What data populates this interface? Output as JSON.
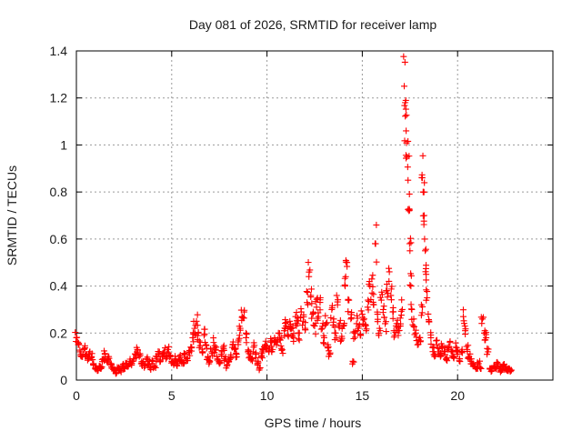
{
  "chart_data": {
    "type": "scatter",
    "title": "Day 081 of 2026, SRMTID for receiver lamp",
    "xlabel": "GPS time / hours",
    "ylabel": "SRMTID / TECUs",
    "xlim": [
      0,
      25
    ],
    "ylim": [
      0,
      1.4
    ],
    "xticks": [
      0,
      5,
      10,
      15,
      20
    ],
    "xtick_labels": [
      "0",
      "5",
      "10",
      "15",
      "20"
    ],
    "yticks": [
      0,
      0.2,
      0.4,
      0.6,
      0.8,
      1.0,
      1.2,
      1.4
    ],
    "ytick_labels": [
      "0",
      "0.2",
      "0.4",
      "0.6",
      "0.8",
      "1",
      "1.2",
      "1.4"
    ],
    "grid": true,
    "marker": "plus",
    "color": "#ff0000",
    "series": [
      {
        "name": "SRMTID",
        "points": [
          [
            0.0,
            0.18
          ],
          [
            0.1,
            0.15
          ],
          [
            0.2,
            0.12
          ],
          [
            0.3,
            0.1
          ],
          [
            0.4,
            0.13
          ],
          [
            0.5,
            0.11
          ],
          [
            0.6,
            0.09
          ],
          [
            0.7,
            0.12
          ],
          [
            0.8,
            0.1
          ],
          [
            0.9,
            0.07
          ],
          [
            1.0,
            0.05
          ],
          [
            1.1,
            0.04
          ],
          [
            1.2,
            0.06
          ],
          [
            1.3,
            0.05
          ],
          [
            1.4,
            0.09
          ],
          [
            1.5,
            0.11
          ],
          [
            1.6,
            0.08
          ],
          [
            1.7,
            0.1
          ],
          [
            1.8,
            0.07
          ],
          [
            1.9,
            0.05
          ],
          [
            2.0,
            0.04
          ],
          [
            2.1,
            0.03
          ],
          [
            2.2,
            0.05
          ],
          [
            2.3,
            0.04
          ],
          [
            2.4,
            0.06
          ],
          [
            2.5,
            0.05
          ],
          [
            2.6,
            0.07
          ],
          [
            2.7,
            0.06
          ],
          [
            2.8,
            0.08
          ],
          [
            2.9,
            0.07
          ],
          [
            3.0,
            0.09
          ],
          [
            3.1,
            0.11
          ],
          [
            3.2,
            0.13
          ],
          [
            3.3,
            0.1
          ],
          [
            3.4,
            0.07
          ],
          [
            3.5,
            0.08
          ],
          [
            3.6,
            0.06
          ],
          [
            3.7,
            0.09
          ],
          [
            3.8,
            0.07
          ],
          [
            3.9,
            0.05
          ],
          [
            4.0,
            0.08
          ],
          [
            4.1,
            0.06
          ],
          [
            4.2,
            0.09
          ],
          [
            4.3,
            0.11
          ],
          [
            4.4,
            0.08
          ],
          [
            4.5,
            0.1
          ],
          [
            4.6,
            0.12
          ],
          [
            4.7,
            0.09
          ],
          [
            4.8,
            0.13
          ],
          [
            4.9,
            0.1
          ],
          [
            5.0,
            0.08
          ],
          [
            5.1,
            0.07
          ],
          [
            5.2,
            0.09
          ],
          [
            5.3,
            0.07
          ],
          [
            5.4,
            0.1
          ],
          [
            5.5,
            0.08
          ],
          [
            5.6,
            0.07
          ],
          [
            5.7,
            0.11
          ],
          [
            5.8,
            0.09
          ],
          [
            5.9,
            0.12
          ],
          [
            6.0,
            0.14
          ],
          [
            6.1,
            0.18
          ],
          [
            6.2,
            0.22
          ],
          [
            6.3,
            0.25
          ],
          [
            6.4,
            0.2
          ],
          [
            6.5,
            0.16
          ],
          [
            6.6,
            0.12
          ],
          [
            6.7,
            0.19
          ],
          [
            6.8,
            0.15
          ],
          [
            6.9,
            0.1
          ],
          [
            7.0,
            0.08
          ],
          [
            7.1,
            0.12
          ],
          [
            7.2,
            0.16
          ],
          [
            7.3,
            0.13
          ],
          [
            7.4,
            0.09
          ],
          [
            7.5,
            0.07
          ],
          [
            7.6,
            0.11
          ],
          [
            7.7,
            0.14
          ],
          [
            7.8,
            0.09
          ],
          [
            7.9,
            0.06
          ],
          [
            8.0,
            0.08
          ],
          [
            8.1,
            0.1
          ],
          [
            8.2,
            0.15
          ],
          [
            8.3,
            0.13
          ],
          [
            8.4,
            0.11
          ],
          [
            8.5,
            0.17
          ],
          [
            8.6,
            0.22
          ],
          [
            8.7,
            0.27
          ],
          [
            8.8,
            0.29
          ],
          [
            8.9,
            0.18
          ],
          [
            9.0,
            0.12
          ],
          [
            9.1,
            0.1
          ],
          [
            9.2,
            0.09
          ],
          [
            9.3,
            0.14
          ],
          [
            9.4,
            0.11
          ],
          [
            9.5,
            0.07
          ],
          [
            9.6,
            0.05
          ],
          [
            9.7,
            0.1
          ],
          [
            9.8,
            0.13
          ],
          [
            9.9,
            0.15
          ],
          [
            10.0,
            0.14
          ],
          [
            10.1,
            0.12
          ],
          [
            10.2,
            0.16
          ],
          [
            10.3,
            0.13
          ],
          [
            10.4,
            0.18
          ],
          [
            10.5,
            0.15
          ],
          [
            10.6,
            0.2
          ],
          [
            10.7,
            0.17
          ],
          [
            10.8,
            0.13
          ],
          [
            10.9,
            0.21
          ],
          [
            11.0,
            0.23
          ],
          [
            11.1,
            0.19
          ],
          [
            11.2,
            0.25
          ],
          [
            11.3,
            0.22
          ],
          [
            11.4,
            0.18
          ],
          [
            11.5,
            0.27
          ],
          [
            11.6,
            0.24
          ],
          [
            11.7,
            0.2
          ],
          [
            11.8,
            0.29
          ],
          [
            11.9,
            0.25
          ],
          [
            12.0,
            0.22
          ],
          [
            12.1,
            0.33
          ],
          [
            12.2,
            0.44
          ],
          [
            12.3,
            0.36
          ],
          [
            12.4,
            0.28
          ],
          [
            12.5,
            0.23
          ],
          [
            12.6,
            0.31
          ],
          [
            12.7,
            0.27
          ],
          [
            12.8,
            0.35
          ],
          [
            12.9,
            0.22
          ],
          [
            13.0,
            0.18
          ],
          [
            13.1,
            0.24
          ],
          [
            13.2,
            0.15
          ],
          [
            13.3,
            0.11
          ],
          [
            13.4,
            0.3
          ],
          [
            13.5,
            0.26
          ],
          [
            13.6,
            0.2
          ],
          [
            13.7,
            0.32
          ],
          [
            13.8,
            0.24
          ],
          [
            13.9,
            0.17
          ],
          [
            14.0,
            0.23
          ],
          [
            14.1,
            0.4
          ],
          [
            14.2,
            0.5
          ],
          [
            14.3,
            0.34
          ],
          [
            14.4,
            0.26
          ],
          [
            14.5,
            0.08
          ],
          [
            14.6,
            0.2
          ],
          [
            14.7,
            0.24
          ],
          [
            14.8,
            0.22
          ],
          [
            14.9,
            0.19
          ],
          [
            15.0,
            0.28
          ],
          [
            15.1,
            0.26
          ],
          [
            15.2,
            0.21
          ],
          [
            15.3,
            0.34
          ],
          [
            15.4,
            0.4
          ],
          [
            15.5,
            0.43
          ],
          [
            15.6,
            0.32
          ],
          [
            15.7,
            0.58
          ],
          [
            15.8,
            0.28
          ],
          [
            15.9,
            0.22
          ],
          [
            16.0,
            0.34
          ],
          [
            16.1,
            0.3
          ],
          [
            16.2,
            0.24
          ],
          [
            16.3,
            0.38
          ],
          [
            16.4,
            0.42
          ],
          [
            16.5,
            0.36
          ],
          [
            16.6,
            0.29
          ],
          [
            16.7,
            0.19
          ],
          [
            16.8,
            0.24
          ],
          [
            16.9,
            0.21
          ],
          [
            17.0,
            0.23
          ],
          [
            17.1,
            0.3
          ],
          [
            17.2,
            1.25
          ],
          [
            17.25,
            1.18
          ],
          [
            17.3,
            1.06
          ],
          [
            17.35,
            0.95
          ],
          [
            17.4,
            0.85
          ],
          [
            17.45,
            0.72
          ],
          [
            17.5,
            0.55
          ],
          [
            17.55,
            0.4
          ],
          [
            17.6,
            0.3
          ],
          [
            17.7,
            0.26
          ],
          [
            17.8,
            0.2
          ],
          [
            17.9,
            0.15
          ],
          [
            18.0,
            0.18
          ],
          [
            18.1,
            0.32
          ],
          [
            18.15,
            0.86
          ],
          [
            18.2,
            0.8
          ],
          [
            18.25,
            0.7
          ],
          [
            18.3,
            0.55
          ],
          [
            18.35,
            0.45
          ],
          [
            18.4,
            0.35
          ],
          [
            18.5,
            0.25
          ],
          [
            18.6,
            0.18
          ],
          [
            18.7,
            0.14
          ],
          [
            18.8,
            0.11
          ],
          [
            18.9,
            0.15
          ],
          [
            19.0,
            0.12
          ],
          [
            19.1,
            0.1
          ],
          [
            19.2,
            0.14
          ],
          [
            19.3,
            0.12
          ],
          [
            19.4,
            0.09
          ],
          [
            19.5,
            0.13
          ],
          [
            19.6,
            0.16
          ],
          [
            19.7,
            0.12
          ],
          [
            19.8,
            0.1
          ],
          [
            19.9,
            0.14
          ],
          [
            20.0,
            0.11
          ],
          [
            20.1,
            0.09
          ],
          [
            20.2,
            0.12
          ],
          [
            20.3,
            0.27
          ],
          [
            20.4,
            0.21
          ],
          [
            20.5,
            0.13
          ],
          [
            20.6,
            0.1
          ],
          [
            20.7,
            0.08
          ],
          [
            20.8,
            0.07
          ],
          [
            20.9,
            0.06
          ],
          [
            21.0,
            0.05
          ],
          [
            21.1,
            0.07
          ],
          [
            21.2,
            0.05
          ],
          [
            21.3,
            0.26
          ],
          [
            21.4,
            0.2
          ],
          [
            21.5,
            0.18
          ],
          [
            21.6,
            0.12
          ],
          [
            21.7,
            0.05
          ],
          [
            21.8,
            0.04
          ],
          [
            21.9,
            0.06
          ],
          [
            22.0,
            0.05
          ],
          [
            22.1,
            0.07
          ],
          [
            22.2,
            0.05
          ],
          [
            22.3,
            0.04
          ],
          [
            22.4,
            0.06
          ],
          [
            22.5,
            0.05
          ],
          [
            22.6,
            0.04
          ],
          [
            22.7,
            0.05
          ],
          [
            22.8,
            0.04
          ]
        ]
      }
    ]
  }
}
